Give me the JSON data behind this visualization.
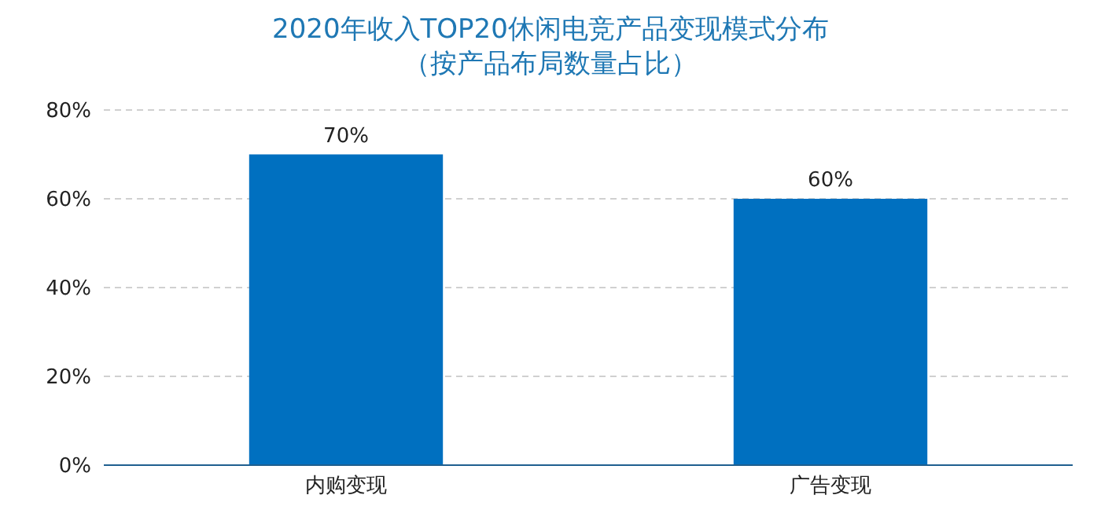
{
  "chart_data": {
    "type": "bar",
    "title": "2020年收入TOP20休闲电竞产品变现模式分布",
    "subtitle": "（按产品布局数量占比）",
    "categories": [
      "内购变现",
      "广告变现"
    ],
    "values": [
      70,
      60
    ],
    "color": "#0070c0",
    "value_labels": [
      "70%",
      "60%"
    ],
    "ylim": [
      0,
      80
    ],
    "yticks": [
      {
        "value": 0,
        "label": "0%"
      },
      {
        "value": 20,
        "label": "20%"
      },
      {
        "value": 40,
        "label": "40%"
      },
      {
        "value": 60,
        "label": "60%"
      },
      {
        "value": 80,
        "label": "80%"
      }
    ],
    "grid": "y"
  }
}
